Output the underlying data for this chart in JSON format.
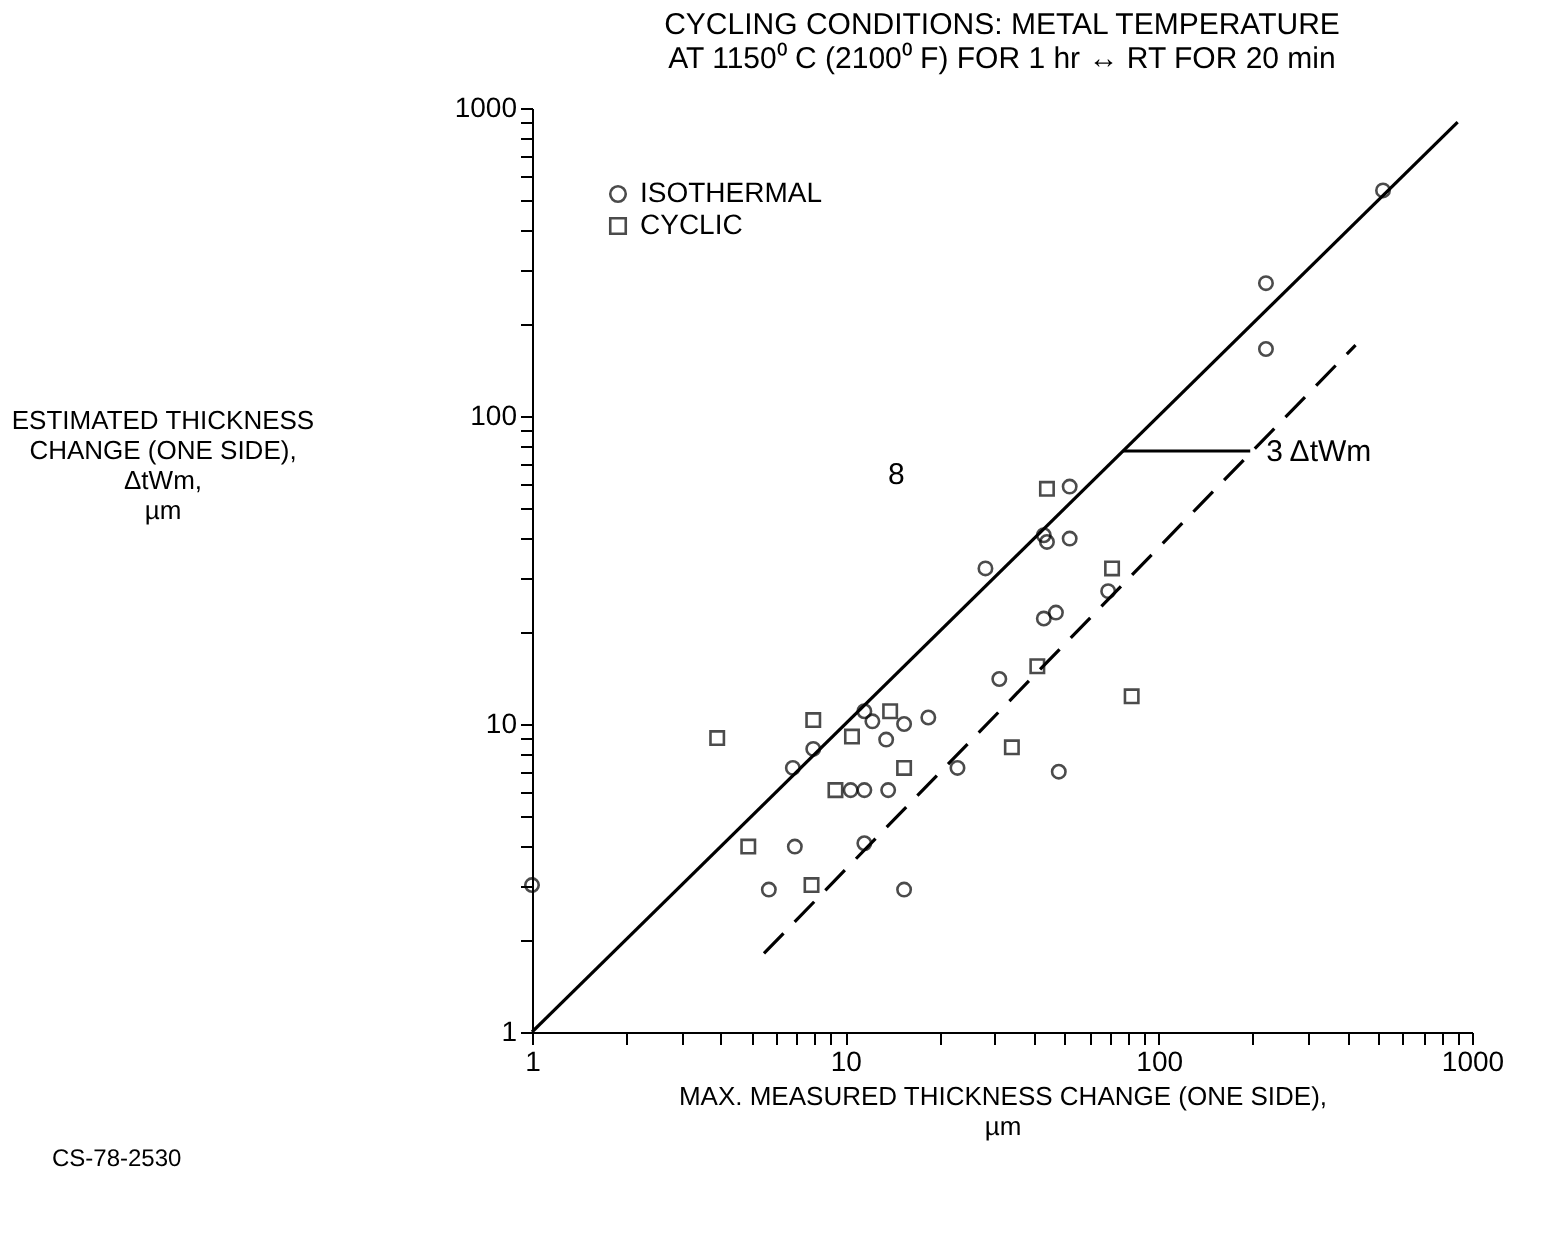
{
  "chart_data": {
    "type": "scatter",
    "title": [
      "CYCLING CONDITIONS:  METAL TEMPERATURE",
      "AT 1150⁰ C (2100⁰ F) FOR 1 hr ↔ RT FOR 20 min"
    ],
    "xlabel": [
      "MAX. MEASURED THICKNESS CHANGE (ONE SIDE),",
      "µm"
    ],
    "ylabel": [
      "ESTIMATED THICKNESS",
      "CHANGE (ONE SIDE),",
      "ΔtWm,",
      "µm"
    ],
    "log": "xy",
    "grid": false,
    "legend": "top left",
    "xlim": [
      1,
      1000
    ],
    "ylim": [
      1,
      1000
    ],
    "xticks": [
      1,
      {
        "value": 2,
        "label": null
      },
      {
        "value": 3,
        "label": null
      },
      {
        "value": 4,
        "label": null
      },
      {
        "value": 5,
        "label": null
      },
      {
        "value": 6,
        "label": null
      },
      {
        "value": 7,
        "label": null
      },
      {
        "value": 8,
        "label": null
      },
      {
        "value": 9,
        "label": null
      },
      10,
      {
        "value": 20,
        "label": null
      },
      {
        "value": 30,
        "label": null
      },
      {
        "value": 40,
        "label": null
      },
      {
        "value": 50,
        "label": null
      },
      {
        "value": 60,
        "label": null
      },
      {
        "value": 70,
        "label": null
      },
      {
        "value": 80,
        "label": null
      },
      {
        "value": 90,
        "label": null
      },
      100,
      {
        "value": 200,
        "label": null
      },
      {
        "value": 300,
        "label": null
      },
      {
        "value": 400,
        "label": null
      },
      {
        "value": 500,
        "label": null
      },
      {
        "value": 600,
        "label": null
      },
      {
        "value": 700,
        "label": null
      },
      {
        "value": 800,
        "label": null
      },
      {
        "value": 900,
        "label": null
      },
      1000
    ],
    "yticks": [
      1,
      {
        "value": 2,
        "label": null
      },
      {
        "value": 3,
        "label": null
      },
      {
        "value": 4,
        "label": null
      },
      {
        "value": 5,
        "label": null
      },
      {
        "value": 6,
        "label": null
      },
      {
        "value": 7,
        "label": null
      },
      {
        "value": 8,
        "label": null
      },
      {
        "value": 9,
        "label": null
      },
      10,
      {
        "value": 20,
        "label": null
      },
      {
        "value": 30,
        "label": null
      },
      {
        "value": 40,
        "label": null
      },
      {
        "value": 50,
        "label": null
      },
      {
        "value": 60,
        "label": null
      },
      {
        "value": 70,
        "label": null
      },
      {
        "value": 80,
        "label": null
      },
      {
        "value": 90,
        "label": null
      },
      100,
      {
        "value": 200,
        "label": null
      },
      {
        "value": 300,
        "label": null
      },
      {
        "value": 400,
        "label": null
      },
      {
        "value": 500,
        "label": null
      },
      {
        "value": 600,
        "label": null
      },
      {
        "value": 700,
        "label": null
      },
      {
        "value": 800,
        "label": null
      },
      {
        "value": 900,
        "label": null
      },
      1000
    ],
    "series": [
      {
        "name": "ISOTHERMAL",
        "marker": "circle",
        "color": "#000000",
        "x": [
          1,
          5.7,
          6.8,
          6.9,
          7.9,
          11.5,
          15.4,
          11.5,
          12.2,
          13.5,
          15.4,
          18.4,
          22.8,
          10.4,
          11.5,
          13.7,
          28,
          52,
          43,
          44,
          52,
          69,
          43,
          47,
          31,
          48,
          220,
          220,
          520
        ],
        "values": [
          3,
          2.9,
          7.2,
          4,
          8.3,
          4.1,
          2.9,
          11,
          10.2,
          8.9,
          10,
          10.5,
          7.2,
          6.1,
          6.1,
          6.1,
          32,
          59,
          41,
          39,
          40,
          27,
          22,
          23,
          14,
          7,
          270,
          165,
          540
        ]
      },
      {
        "name": "CYCLIC",
        "marker": "square",
        "color": "#000000",
        "x": [
          3.9,
          4.9,
          7.8,
          7.9,
          9.3,
          10.5,
          13.9,
          15.4,
          44,
          71,
          41,
          82,
          34
        ],
        "values": [
          9,
          4,
          3,
          10.3,
          6.1,
          9.1,
          11,
          7.2,
          58,
          32,
          15.4,
          12.3,
          8.4
        ]
      },
      {
        "type": "line",
        "line_style": "solid",
        "color": "#000000",
        "x": [
          1,
          900
        ],
        "values": [
          1,
          900
        ]
      },
      {
        "type": "line",
        "line_style": "dashed",
        "color": "#000000",
        "x": [
          5.5,
          425
        ],
        "values": [
          1.8,
          170
        ]
      }
    ],
    "annotations": [
      {
        "text": "3 ΔtWm",
        "x": 196,
        "y": 77
      },
      "8",
      "CS-78-2530"
    ]
  }
}
